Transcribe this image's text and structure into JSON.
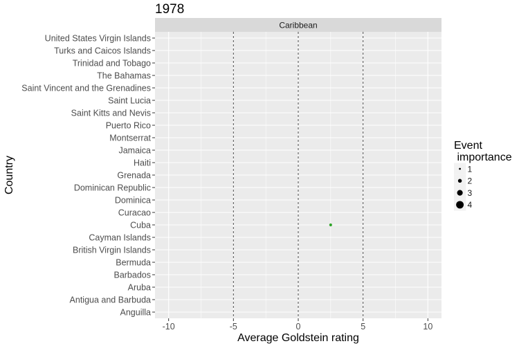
{
  "chart_data": {
    "type": "scatter",
    "title": "1978",
    "facet_label": "Caribbean",
    "xlabel": "Average Goldstein rating",
    "ylabel": "Country",
    "xlim": [
      -11.05,
      11.05
    ],
    "xticks": [
      -10,
      -5,
      0,
      5,
      10
    ],
    "reference_lines": [
      -5,
      0,
      5
    ],
    "countries": [
      "Anguilla",
      "Antigua and Barbuda",
      "Aruba",
      "Barbados",
      "Bermuda",
      "British Virgin Islands",
      "Cayman Islands",
      "Cuba",
      "Curacao",
      "Dominica",
      "Dominican Republic",
      "Grenada",
      "Haiti",
      "Jamaica",
      "Montserrat",
      "Puerto Rico",
      "Saint Kitts and Nevis",
      "Saint Lucia",
      "Saint Vincent and the Grenadines",
      "The Bahamas",
      "Trinidad and Tobago",
      "Turks and Caicos Islands",
      "United States Virgin Islands"
    ],
    "points": [
      {
        "country": "Cuba",
        "x": 2.5,
        "importance": 1.5,
        "color": "#31a52a"
      }
    ],
    "legend": {
      "title_line1": "Event",
      "title_line2": " importance",
      "entries": [
        {
          "label": "1",
          "size": 1
        },
        {
          "label": "2",
          "size": 2
        },
        {
          "label": "3",
          "size": 3
        },
        {
          "label": "4",
          "size": 4
        }
      ],
      "position": "right"
    }
  },
  "colors": {
    "panel_bg": "#ebebeb",
    "strip_bg": "#d9d9d9",
    "grid": "#ffffff",
    "ref_line": "#4d4d4d",
    "text": "#1a1a1a",
    "tick_text": "#4d4d4d"
  }
}
